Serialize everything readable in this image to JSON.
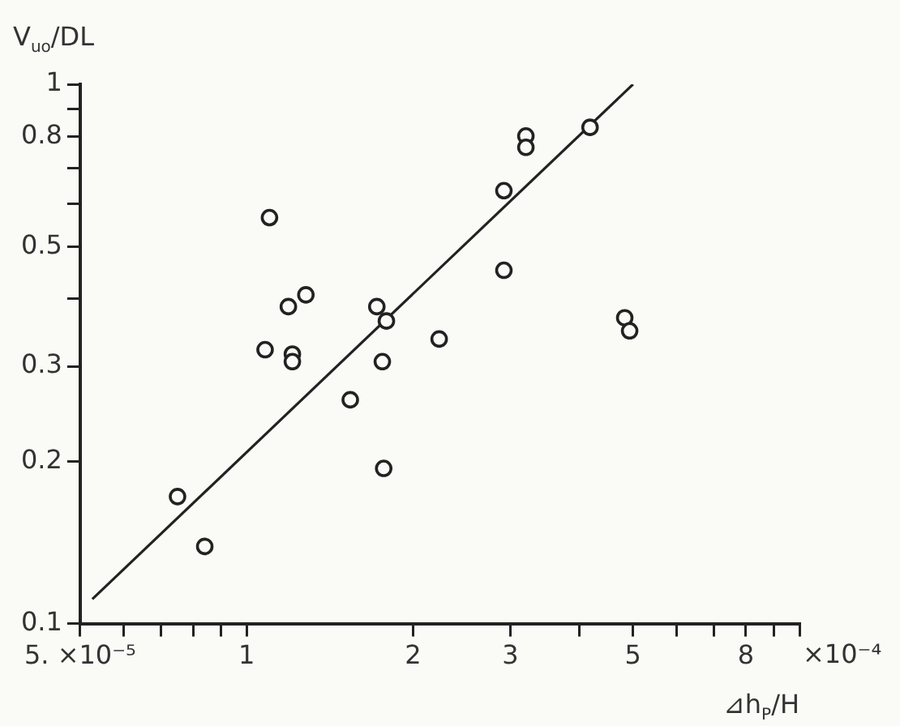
{
  "chart_data": {
    "type": "scatter",
    "xlabel": "⊿h$_{P}$/H",
    "ylabel": "V$_{uo}$/DL",
    "log": "xy",
    "grid": false,
    "legend": false,
    "xlim": [
      0.5,
      10
    ],
    "ylim": [
      0.1,
      1
    ],
    "xticks": [
      {
        "value": 0.5,
        "label": "5. ×10⁻⁵"
      },
      {
        "value": 0.6,
        "label": null
      },
      {
        "value": 0.7,
        "label": null
      },
      {
        "value": 0.8,
        "label": null
      },
      {
        "value": 0.9,
        "label": null
      },
      1,
      2,
      3,
      {
        "value": 4,
        "label": null
      },
      5,
      {
        "value": 6,
        "label": null
      },
      {
        "value": 7,
        "label": null
      },
      8,
      {
        "value": 9,
        "label": null
      },
      {
        "value": 10,
        "label": null
      }
    ],
    "yticks": [
      0.1,
      0.2,
      0.3,
      {
        "value": 0.4,
        "label": null
      },
      0.5,
      {
        "value": 0.6,
        "label": null
      },
      {
        "value": 0.7,
        "label": null
      },
      0.8,
      {
        "value": 0.9,
        "label": null
      },
      1
    ],
    "annotations": [
      "×10⁻⁴"
    ],
    "series": [
      {
        "color": "#222222",
        "marker": "circle",
        "x": [
          0.75,
          0.84,
          1.1,
          1.08,
          1.19,
          1.28,
          1.21,
          1.21,
          1.54,
          1.72,
          1.79,
          1.76,
          1.77,
          2.23,
          2.92,
          2.92,
          3.2,
          3.2,
          4.18,
          4.83,
          4.93
        ],
        "values": [
          0.172,
          0.139,
          0.566,
          0.322,
          0.387,
          0.407,
          0.316,
          0.306,
          0.26,
          0.387,
          0.364,
          0.306,
          0.194,
          0.337,
          0.452,
          0.635,
          0.802,
          0.764,
          0.832,
          0.369,
          0.349
        ]
      },
      {
        "type": "line",
        "color": "#222222",
        "marker": "none",
        "line_style": "solid",
        "x": [
          0.526,
          5.0
        ],
        "values": [
          0.111,
          1.0
        ]
      }
    ]
  }
}
